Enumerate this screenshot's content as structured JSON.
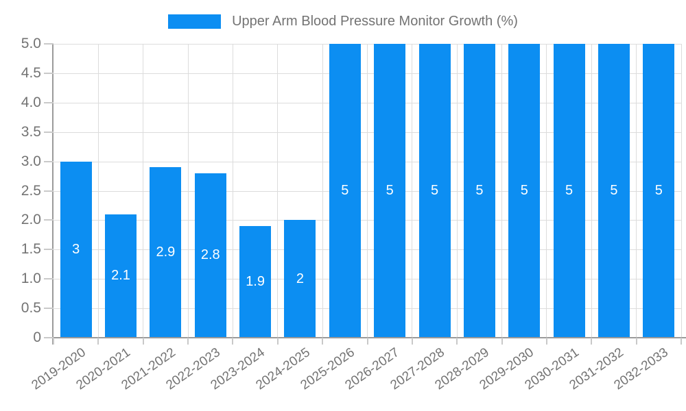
{
  "legend": {
    "label": "Upper Arm Blood Pressure Monitor Growth (%)",
    "position": "top"
  },
  "colors": {
    "bar": "#0c8ef2",
    "grid": "#dcdcdc",
    "axis": "#9a9a9a",
    "tick": "#c9c9c9",
    "text": "#737373",
    "bar_label": "#ffffff",
    "background": "#ffffff"
  },
  "chart_data": {
    "type": "bar",
    "title": "Upper Arm Blood Pressure Monitor Growth (%)",
    "xlabel": "",
    "ylabel": "",
    "categories": [
      "2019-2020",
      "2020-2021",
      "2021-2022",
      "2022-2023",
      "2023-2024",
      "2024-2025",
      "2025-2026",
      "2026-2027",
      "2027-2028",
      "2028-2029",
      "2029-2030",
      "2030-2031",
      "2031-2032",
      "2032-2033"
    ],
    "values": [
      3,
      2.1,
      2.9,
      2.8,
      1.9,
      2,
      5,
      5,
      5,
      5,
      5,
      5,
      5,
      5
    ],
    "bar_labels": [
      "3",
      "2.1",
      "2.9",
      "2.8",
      "1.9",
      "2",
      "5",
      "5",
      "5",
      "5",
      "5",
      "5",
      "5",
      "5"
    ],
    "ylim": [
      0,
      5
    ],
    "ytick_values": [
      0,
      0.5,
      1,
      1.5,
      2,
      2.5,
      3,
      3.5,
      4,
      4.5,
      5
    ],
    "ytick_labels": [
      "0",
      "0.5",
      "1.0",
      "1.5",
      "2.0",
      "2.5",
      "3.0",
      "3.5",
      "4.0",
      "4.5",
      "5.0"
    ],
    "grid": true,
    "legend_position": "top",
    "x_label_rotation_deg": -35,
    "bar_value_label_position": "center"
  }
}
